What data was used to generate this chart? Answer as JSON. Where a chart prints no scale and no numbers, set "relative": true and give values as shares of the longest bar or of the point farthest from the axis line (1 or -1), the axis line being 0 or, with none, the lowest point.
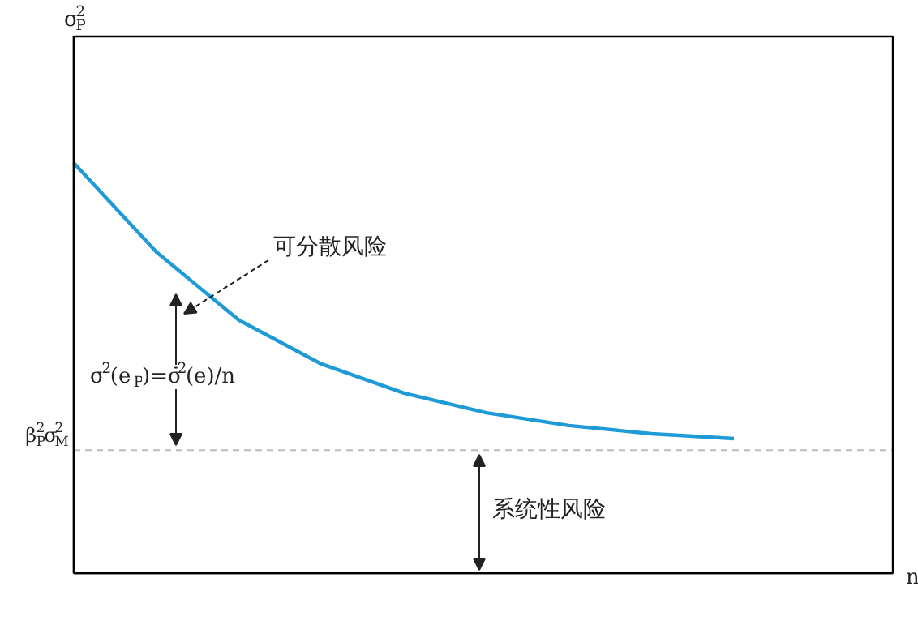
{
  "chart_data": {
    "type": "line",
    "relative": true,
    "categories": [
      null,
      null,
      null,
      null,
      null,
      null,
      null,
      null,
      null
    ],
    "series": [
      {
        "color": "#1e9ad6",
        "values": [
          1,
          0.783,
          0.617,
          0.51,
          0.439,
          0.391,
          0.36,
          0.34,
          0.328
        ]
      }
    ],
    "ref_lines": [
      {
        "axis": "y",
        "value": 0.3,
        "label": "β$_{P}$$^{2}$σ$_{M}$$^{2}$",
        "color": "#bbbbbb",
        "line_style": "dashed"
      }
    ],
    "annotations": [
      "可分散风险",
      "σ$^{2}$(e$_{P}$)=σ̄$^{2}$(e)/n",
      "系统性风险",
      "σ$_{P}$$^{2}$",
      "n"
    ],
    "marker": "none",
    "line_style": "solid"
  }
}
